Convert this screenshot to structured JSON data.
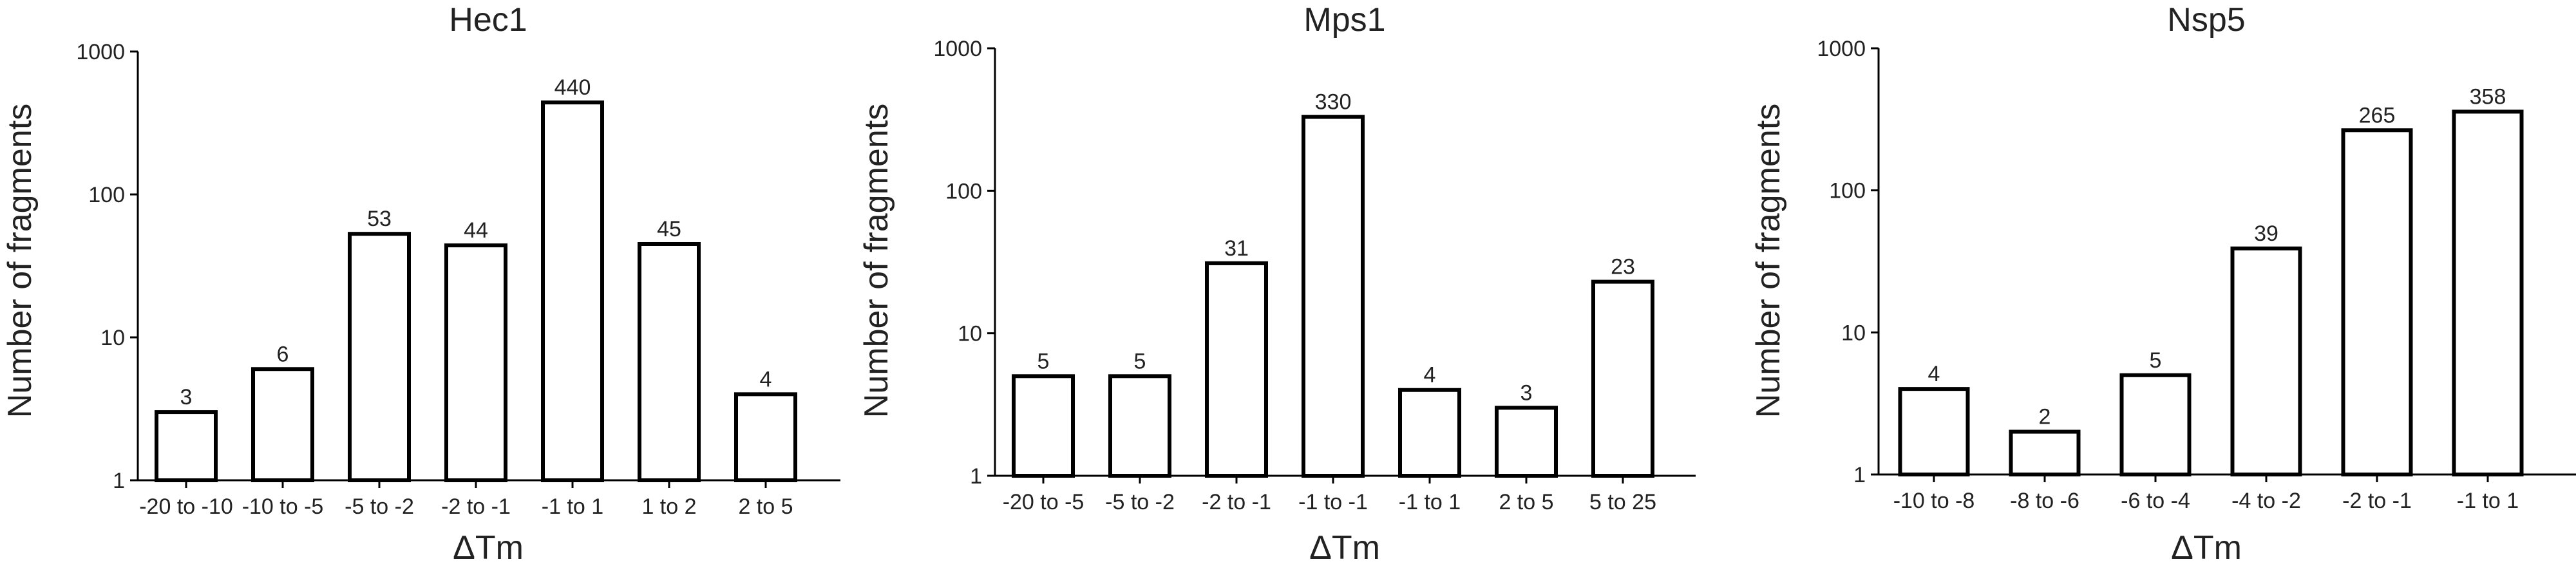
{
  "chart_data": [
    {
      "type": "bar",
      "title": "Hec1",
      "xlabel": "ΔTm",
      "ylabel": "Number of fragments",
      "y_scale": "log",
      "ylim": [
        1,
        1000
      ],
      "y_ticks": [
        "1",
        "10",
        "100",
        "1000"
      ],
      "grid": false,
      "categories": [
        "-20 to -10",
        "-10 to -5",
        "-5 to -2",
        "-2 to -1",
        "-1 to 1",
        "1 to 2",
        "2 to 5"
      ],
      "values": [
        3,
        6,
        53,
        44,
        440,
        45,
        4
      ],
      "bar_color": "#ffffff",
      "edge_color": "#000000"
    },
    {
      "type": "bar",
      "title": "Mps1",
      "xlabel": "ΔTm",
      "ylabel": "Number of fragments",
      "y_scale": "log",
      "ylim": [
        1,
        1000
      ],
      "y_ticks": [
        "1",
        "10",
        "100",
        "1000"
      ],
      "grid": false,
      "categories": [
        "-20 to -5",
        "-5 to -2",
        "-2 to -1",
        "-1 to -1",
        "-1 to 1",
        "2 to 5",
        "5 to 25"
      ],
      "values": [
        5,
        5,
        31,
        330,
        4,
        3,
        23
      ],
      "bar_color": "#ffffff",
      "edge_color": "#000000"
    },
    {
      "type": "bar",
      "title": "Nsp5",
      "xlabel": "ΔTm",
      "ylabel": "Number of fragments",
      "y_scale": "log",
      "ylim": [
        1,
        1000
      ],
      "y_ticks": [
        "1",
        "10",
        "100",
        "1000"
      ],
      "grid": false,
      "categories": [
        "-10 to -8",
        "-8 to -6",
        "-6 to -4",
        "-4 to -2",
        "-2 to -1",
        "-1 to 1"
      ],
      "values": [
        4,
        2,
        5,
        39,
        265,
        358
      ],
      "bar_color": "#ffffff",
      "edge_color": "#000000"
    }
  ]
}
